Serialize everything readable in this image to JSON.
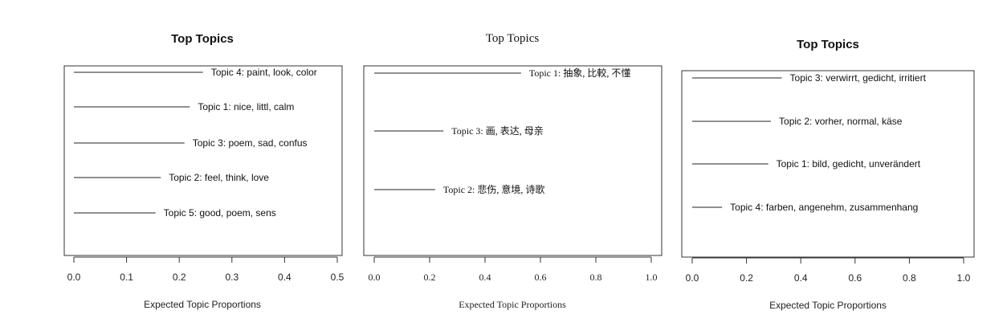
{
  "chart_data": [
    {
      "type": "bar",
      "title": "Top Topics",
      "xlabel": "Expected Topic Proportions",
      "xlim": [
        0,
        0.5
      ],
      "xticks": [
        "0.0",
        "0.1",
        "0.2",
        "0.3",
        "0.4",
        "0.5"
      ],
      "series": [
        {
          "label": "Topic 4: paint, look, color",
          "value": 0.245
        },
        {
          "label": "Topic 1: nice, littl, calm",
          "value": 0.22
        },
        {
          "label": "Topic 3: poem, sad, confus",
          "value": 0.21
        },
        {
          "label": "Topic 2: feel, think, love",
          "value": 0.165
        },
        {
          "label": "Topic 5: good, poem, sens",
          "value": 0.155
        }
      ]
    },
    {
      "type": "bar",
      "title": "Top Topics",
      "xlabel": "Expected Topic Proportions",
      "xlim": [
        0,
        1.0
      ],
      "xticks": [
        "0.0",
        "0.2",
        "0.4",
        "0.6",
        "0.8",
        "1.0"
      ],
      "series": [
        {
          "label": "Topic 1: 抽象, 比較, 不懂",
          "value": 0.53
        },
        {
          "label": "Topic 3: 画, 表达, 母亲",
          "value": 0.25
        },
        {
          "label": "Topic 2: 悲伤, 意境, 诗歌",
          "value": 0.22
        }
      ]
    },
    {
      "type": "bar",
      "title": "Top Topics",
      "xlabel": "Expected Topic Proportions",
      "xlim": [
        0,
        1.0
      ],
      "xticks": [
        "0.0",
        "0.2",
        "0.4",
        "0.6",
        "0.8",
        "1.0"
      ],
      "series": [
        {
          "label": "Topic 3: verwirrt, gedicht, irritiert",
          "value": 0.33
        },
        {
          "label": "Topic 2: vorher, normal, käse",
          "value": 0.29
        },
        {
          "label": "Topic 1: bild, gedicht, unverändert",
          "value": 0.28
        },
        {
          "label": "Topic 4: farben, angenehm, zusammenhang",
          "value": 0.11
        }
      ]
    }
  ]
}
